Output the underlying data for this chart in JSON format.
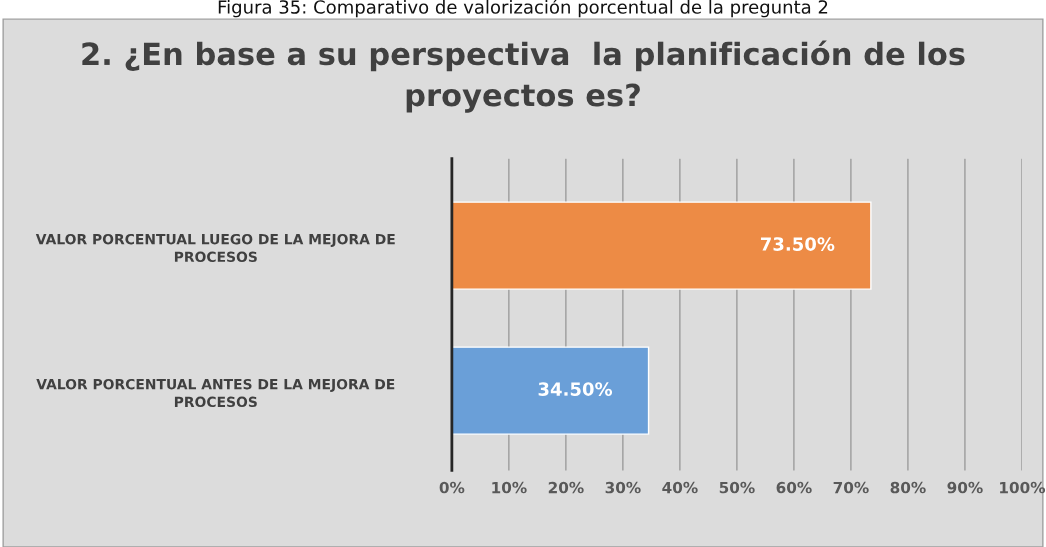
{
  "chart_data": {
    "type": "bar",
    "orientation": "horizontal",
    "title": "2. ¿En base a su perspectiva  la planificación de los proyectos es?",
    "annotations": [
      "Figura 35: Comparativo de valorización porcentual de la pregunta 2"
    ],
    "categories": [
      "VALOR PORCENTUAL LUEGO DE LA MEJORA DE PROCESOS",
      "VALOR PORCENTUAL ANTES DE LA MEJORA DE PROCESOS"
    ],
    "values": [
      73.5,
      34.5
    ],
    "colors": [
      "#ed8b45",
      "#6a9fd8"
    ],
    "value_labels": [
      "73.50%",
      "34.50%"
    ],
    "xlim": [
      0,
      100
    ],
    "xticks": [
      {
        "value": 0,
        "label": "0%"
      },
      {
        "value": 10,
        "label": "10%"
      },
      {
        "value": 20,
        "label": "20%"
      },
      {
        "value": 30,
        "label": "30%"
      },
      {
        "value": 40,
        "label": "40%"
      },
      {
        "value": 50,
        "label": "50%"
      },
      {
        "value": 60,
        "label": "60%"
      },
      {
        "value": 70,
        "label": "70%"
      },
      {
        "value": 80,
        "label": "80%"
      },
      {
        "value": 90,
        "label": "90%"
      },
      {
        "value": 100,
        "label": "100%"
      }
    ],
    "grid": "x"
  }
}
